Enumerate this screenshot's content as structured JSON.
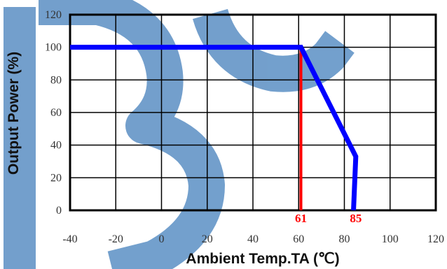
{
  "chart_data": {
    "type": "line",
    "xlabel": "Ambient Temp.TA (℃)",
    "ylabel": "Output Power (%)",
    "xlim": [
      -40,
      120
    ],
    "ylim": [
      0,
      120
    ],
    "x_ticks": [
      "-40",
      "-20",
      "0",
      "20",
      "40",
      "60",
      "80",
      "100",
      "120"
    ],
    "y_ticks": [
      "0",
      "20",
      "40",
      "60",
      "80",
      "100",
      "120"
    ],
    "grid": true,
    "series": [
      {
        "x": [
          -40,
          61,
          85,
          85,
          84
        ],
        "y": [
          100,
          100,
          33,
          33,
          0
        ],
        "color": "#0000ff"
      }
    ],
    "markers": [
      {
        "x": 61,
        "label": "61",
        "color": "#ff0000",
        "line": true
      },
      {
        "x": 85,
        "label": "85",
        "color": "#ff0000",
        "line": false
      }
    ],
    "watermark": {
      "color": "#5b8fc4"
    }
  }
}
